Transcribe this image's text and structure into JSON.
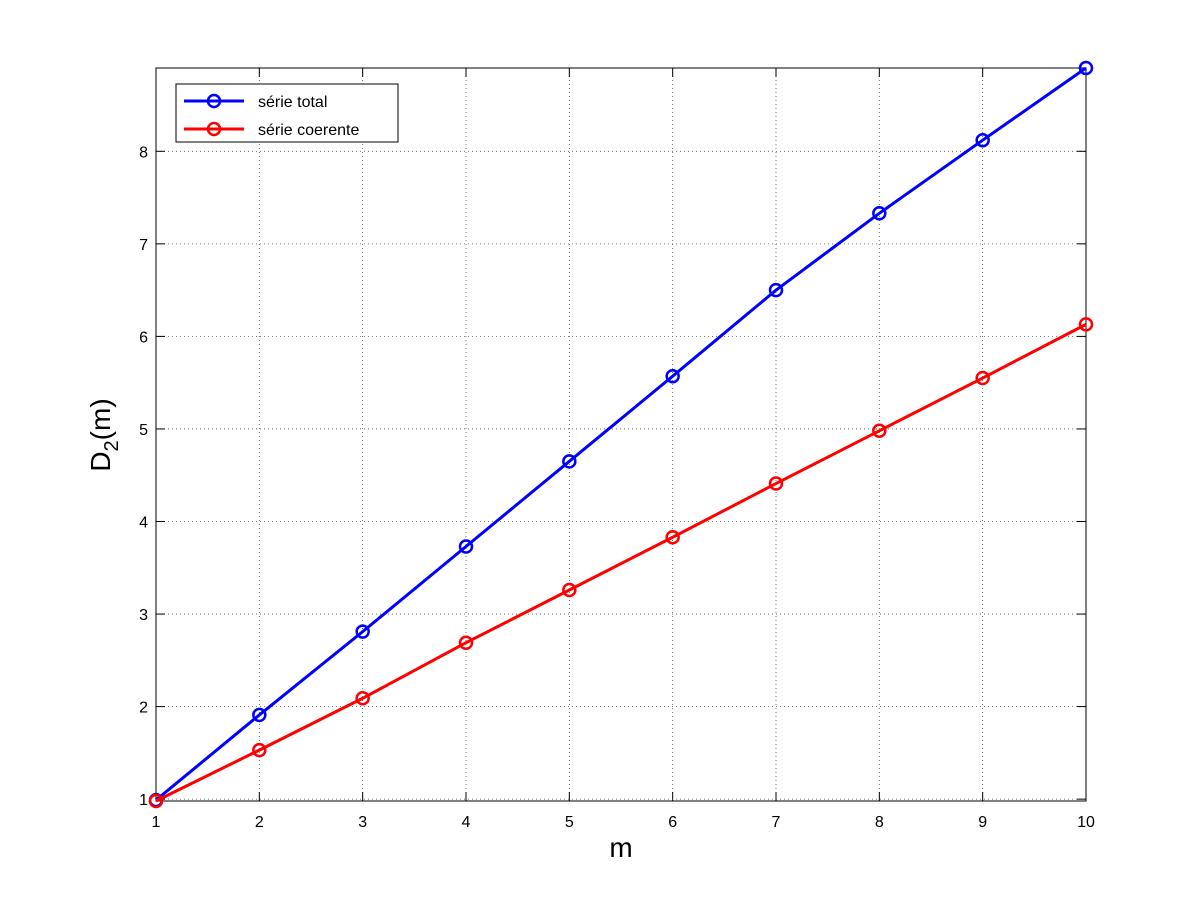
{
  "chart_data": {
    "type": "line",
    "x": [
      1,
      2,
      3,
      4,
      5,
      6,
      7,
      8,
      9,
      10
    ],
    "series": [
      {
        "name": "série total",
        "color": "#0000ff",
        "values": [
          0.99,
          1.91,
          2.81,
          3.73,
          4.65,
          5.57,
          6.5,
          7.33,
          8.12,
          8.9
        ]
      },
      {
        "name": "série coerente",
        "color": "#ff0000",
        "values": [
          0.98,
          1.53,
          2.09,
          2.69,
          3.26,
          3.83,
          4.41,
          4.98,
          5.55,
          6.13
        ]
      }
    ],
    "xlabel": "m",
    "ylabel": [
      "D",
      "2",
      "(m)"
    ],
    "xlim": [
      1,
      10
    ],
    "ylim": [
      0.98,
      8.9
    ],
    "xticks": [
      1,
      2,
      3,
      4,
      5,
      6,
      7,
      8,
      9,
      10
    ],
    "yticks": [
      1,
      2,
      3,
      4,
      5,
      6,
      7,
      8
    ],
    "grid": true,
    "legend": "upper-left",
    "markers": "circle"
  }
}
